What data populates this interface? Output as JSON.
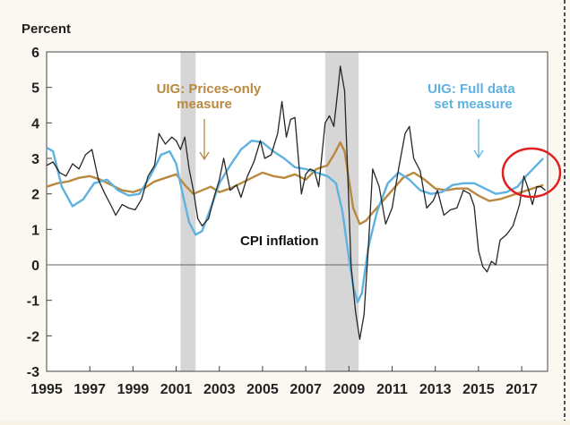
{
  "chart_data": {
    "type": "line",
    "ylabel": "Percent",
    "xlim": [
      1995,
      2018.2
    ],
    "ylim": [
      -3,
      6
    ],
    "x_ticks": [
      "1995",
      "1997",
      "1999",
      "2001",
      "2003",
      "2005",
      "2007",
      "2009",
      "2011",
      "2013",
      "2015",
      "2017"
    ],
    "y_ticks": [
      "6",
      "5",
      "4",
      "3",
      "2",
      "1",
      "0",
      "-1",
      "-2",
      "-3"
    ],
    "recessions": [
      [
        2001.2,
        2001.9
      ],
      [
        2007.9,
        2009.45
      ]
    ],
    "annotations": {
      "prices_only": "UIG: Prices-only measure",
      "full_data": "UIG: Full data set measure",
      "cpi": "CPI inflation"
    },
    "series": [
      {
        "name": "UIG: Prices-only measure",
        "color": "#b8893e",
        "points": [
          [
            1995,
            2.2
          ],
          [
            1995.5,
            2.3
          ],
          [
            1996,
            2.35
          ],
          [
            1996.5,
            2.45
          ],
          [
            1997,
            2.5
          ],
          [
            1997.5,
            2.4
          ],
          [
            1998,
            2.25
          ],
          [
            1998.5,
            2.1
          ],
          [
            1999,
            2.05
          ],
          [
            1999.5,
            2.15
          ],
          [
            2000,
            2.35
          ],
          [
            2000.5,
            2.45
          ],
          [
            2001,
            2.55
          ],
          [
            2001.4,
            2.25
          ],
          [
            2001.8,
            2.0
          ],
          [
            2002.2,
            2.1
          ],
          [
            2002.6,
            2.2
          ],
          [
            2003,
            2.05
          ],
          [
            2003.5,
            2.15
          ],
          [
            2004,
            2.3
          ],
          [
            2004.5,
            2.45
          ],
          [
            2005,
            2.6
          ],
          [
            2005.5,
            2.5
          ],
          [
            2006,
            2.45
          ],
          [
            2006.5,
            2.55
          ],
          [
            2007,
            2.4
          ],
          [
            2007.5,
            2.7
          ],
          [
            2008,
            2.8
          ],
          [
            2008.3,
            3.1
          ],
          [
            2008.6,
            3.45
          ],
          [
            2008.8,
            3.2
          ],
          [
            2009.0,
            2.4
          ],
          [
            2009.2,
            1.6
          ],
          [
            2009.5,
            1.15
          ],
          [
            2009.8,
            1.25
          ],
          [
            2010,
            1.4
          ],
          [
            2010.5,
            1.75
          ],
          [
            2011,
            2.1
          ],
          [
            2011.5,
            2.45
          ],
          [
            2012,
            2.6
          ],
          [
            2012.5,
            2.4
          ],
          [
            2013,
            2.15
          ],
          [
            2013.5,
            2.1
          ],
          [
            2014,
            2.15
          ],
          [
            2014.5,
            2.15
          ],
          [
            2015,
            1.95
          ],
          [
            2015.5,
            1.8
          ],
          [
            2016,
            1.85
          ],
          [
            2016.5,
            1.95
          ],
          [
            2017,
            2.05
          ],
          [
            2017.5,
            2.15
          ],
          [
            2018,
            2.25
          ]
        ]
      },
      {
        "name": "UIG: Full data set measure",
        "color": "#5fb2e0",
        "points": [
          [
            1995,
            3.3
          ],
          [
            1995.3,
            3.2
          ],
          [
            1995.7,
            2.2
          ],
          [
            1996.2,
            1.65
          ],
          [
            1996.7,
            1.85
          ],
          [
            1997.2,
            2.3
          ],
          [
            1997.8,
            2.4
          ],
          [
            1998.3,
            2.1
          ],
          [
            1998.8,
            1.95
          ],
          [
            1999.3,
            2.0
          ],
          [
            1999.8,
            2.5
          ],
          [
            2000.3,
            3.1
          ],
          [
            2000.7,
            3.2
          ],
          [
            2001,
            2.85
          ],
          [
            2001.3,
            2.0
          ],
          [
            2001.6,
            1.2
          ],
          [
            2001.9,
            0.85
          ],
          [
            2002.2,
            0.95
          ],
          [
            2002.6,
            1.6
          ],
          [
            2003,
            2.3
          ],
          [
            2003.5,
            2.8
          ],
          [
            2004,
            3.25
          ],
          [
            2004.5,
            3.5
          ],
          [
            2005,
            3.45
          ],
          [
            2005.5,
            3.2
          ],
          [
            2006,
            3.0
          ],
          [
            2006.5,
            2.75
          ],
          [
            2007,
            2.7
          ],
          [
            2007.5,
            2.6
          ],
          [
            2008,
            2.5
          ],
          [
            2008.4,
            2.3
          ],
          [
            2008.7,
            1.5
          ],
          [
            2009,
            0.2
          ],
          [
            2009.2,
            -0.6
          ],
          [
            2009.4,
            -1.05
          ],
          [
            2009.6,
            -0.8
          ],
          [
            2009.9,
            0.5
          ],
          [
            2010.3,
            1.5
          ],
          [
            2010.8,
            2.3
          ],
          [
            2011.3,
            2.6
          ],
          [
            2011.8,
            2.4
          ],
          [
            2012.3,
            2.1
          ],
          [
            2012.8,
            2.0
          ],
          [
            2013.3,
            2.05
          ],
          [
            2013.8,
            2.25
          ],
          [
            2014.3,
            2.3
          ],
          [
            2014.8,
            2.3
          ],
          [
            2015.3,
            2.15
          ],
          [
            2015.8,
            2.0
          ],
          [
            2016.3,
            2.05
          ],
          [
            2016.8,
            2.2
          ],
          [
            2017.2,
            2.5
          ],
          [
            2017.6,
            2.75
          ],
          [
            2018,
            3.0
          ]
        ]
      },
      {
        "name": "CPI inflation",
        "color": "#262626",
        "points": [
          [
            1995,
            2.8
          ],
          [
            1995.3,
            2.9
          ],
          [
            1995.6,
            2.6
          ],
          [
            1995.9,
            2.5
          ],
          [
            1996.2,
            2.85
          ],
          [
            1996.5,
            2.7
          ],
          [
            1996.8,
            3.1
          ],
          [
            1997.1,
            3.25
          ],
          [
            1997.4,
            2.4
          ],
          [
            1997.7,
            2.0
          ],
          [
            1998.0,
            1.65
          ],
          [
            1998.2,
            1.4
          ],
          [
            1998.5,
            1.7
          ],
          [
            1998.8,
            1.6
          ],
          [
            1999.1,
            1.55
          ],
          [
            1999.4,
            1.85
          ],
          [
            1999.7,
            2.5
          ],
          [
            2000.0,
            2.8
          ],
          [
            2000.2,
            3.7
          ],
          [
            2000.5,
            3.4
          ],
          [
            2000.8,
            3.6
          ],
          [
            2001.0,
            3.5
          ],
          [
            2001.2,
            3.25
          ],
          [
            2001.4,
            3.6
          ],
          [
            2001.6,
            2.7
          ],
          [
            2001.8,
            2.1
          ],
          [
            2002.0,
            1.3
          ],
          [
            2002.2,
            1.1
          ],
          [
            2002.5,
            1.3
          ],
          [
            2002.8,
            2.0
          ],
          [
            2003.0,
            2.4
          ],
          [
            2003.2,
            3.0
          ],
          [
            2003.5,
            2.1
          ],
          [
            2003.8,
            2.25
          ],
          [
            2004.0,
            1.9
          ],
          [
            2004.3,
            2.5
          ],
          [
            2004.6,
            2.9
          ],
          [
            2004.9,
            3.5
          ],
          [
            2005.1,
            3.0
          ],
          [
            2005.4,
            3.1
          ],
          [
            2005.7,
            3.7
          ],
          [
            2005.9,
            4.6
          ],
          [
            2006.1,
            3.6
          ],
          [
            2006.3,
            4.1
          ],
          [
            2006.5,
            4.15
          ],
          [
            2006.8,
            2.0
          ],
          [
            2007.0,
            2.55
          ],
          [
            2007.2,
            2.7
          ],
          [
            2007.4,
            2.65
          ],
          [
            2007.6,
            2.2
          ],
          [
            2007.9,
            4.0
          ],
          [
            2008.1,
            4.2
          ],
          [
            2008.3,
            3.9
          ],
          [
            2008.5,
            5.0
          ],
          [
            2008.6,
            5.6
          ],
          [
            2008.8,
            4.9
          ],
          [
            2008.95,
            2.5
          ],
          [
            2009.1,
            0.0
          ],
          [
            2009.3,
            -1.3
          ],
          [
            2009.5,
            -2.1
          ],
          [
            2009.7,
            -1.4
          ],
          [
            2009.9,
            0.5
          ],
          [
            2010.1,
            2.7
          ],
          [
            2010.4,
            2.2
          ],
          [
            2010.7,
            1.15
          ],
          [
            2011.0,
            1.6
          ],
          [
            2011.3,
            2.7
          ],
          [
            2011.6,
            3.7
          ],
          [
            2011.8,
            3.9
          ],
          [
            2012.0,
            3.0
          ],
          [
            2012.3,
            2.65
          ],
          [
            2012.6,
            1.6
          ],
          [
            2012.9,
            1.8
          ],
          [
            2013.1,
            2.1
          ],
          [
            2013.4,
            1.4
          ],
          [
            2013.7,
            1.55
          ],
          [
            2014.0,
            1.6
          ],
          [
            2014.3,
            2.1
          ],
          [
            2014.6,
            2.0
          ],
          [
            2014.8,
            1.65
          ],
          [
            2015.0,
            0.4
          ],
          [
            2015.2,
            -0.05
          ],
          [
            2015.4,
            -0.2
          ],
          [
            2015.6,
            0.1
          ],
          [
            2015.8,
            0.0
          ],
          [
            2016.0,
            0.7
          ],
          [
            2016.3,
            0.85
          ],
          [
            2016.6,
            1.1
          ],
          [
            2016.9,
            1.7
          ],
          [
            2017.1,
            2.5
          ],
          [
            2017.3,
            2.15
          ],
          [
            2017.5,
            1.7
          ],
          [
            2017.7,
            2.2
          ],
          [
            2017.9,
            2.2
          ],
          [
            2018.1,
            2.1
          ]
        ]
      }
    ],
    "highlight_circle_color": "#e02020"
  }
}
